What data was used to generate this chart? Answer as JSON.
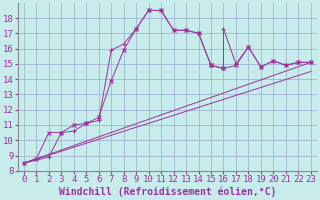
{
  "xlabel": "Windchill (Refroidissement éolien,°C)",
  "bg_color": "#c8ecec",
  "line_color": "#993399",
  "grid_color": "#99aacc",
  "xlim": [
    -0.5,
    23.5
  ],
  "ylim": [
    8,
    19
  ],
  "xticks": [
    0,
    1,
    2,
    3,
    4,
    5,
    6,
    7,
    8,
    9,
    10,
    11,
    12,
    13,
    14,
    15,
    16,
    17,
    18,
    19,
    20,
    21,
    22,
    23
  ],
  "yticks": [
    8,
    9,
    10,
    11,
    12,
    13,
    14,
    15,
    16,
    17,
    18
  ],
  "line1_x": [
    0,
    1,
    2,
    3,
    4,
    5,
    6,
    7,
    8,
    9,
    10,
    11,
    12,
    13,
    14,
    15,
    15,
    16,
    17,
    18,
    19,
    20,
    21,
    22,
    23
  ],
  "line1_y": [
    8.5,
    8.8,
    10.5,
    10.5,
    11.0,
    11.1,
    11.5,
    13.9,
    15.9,
    17.3,
    18.5,
    18.5,
    17.2,
    17.2,
    17.0,
    14.9,
    14.9,
    14.7,
    14.9,
    16.1,
    14.8,
    15.2,
    14.9,
    15.1,
    15.1
  ],
  "line2_x": [
    0,
    2,
    3,
    4,
    5,
    5,
    6,
    7,
    8,
    9,
    10,
    11,
    12,
    13,
    14,
    15,
    16,
    16,
    17,
    18,
    19,
    20,
    21,
    22,
    23
  ],
  "line2_y": [
    8.5,
    8.9,
    10.5,
    10.6,
    11.1,
    11.1,
    11.3,
    15.9,
    16.3,
    17.3,
    18.5,
    18.5,
    17.2,
    17.2,
    17.0,
    14.9,
    14.7,
    17.3,
    15.0,
    16.1,
    14.8,
    15.2,
    14.9,
    15.1,
    15.1
  ],
  "line3_x": [
    0,
    23
  ],
  "line3_y": [
    8.5,
    15.1
  ],
  "line4_x": [
    0,
    23
  ],
  "line4_y": [
    8.5,
    14.5
  ],
  "xlabel_fontsize": 7,
  "tick_fontsize": 6.5,
  "marker_size": 2.5,
  "linewidth": 0.7
}
